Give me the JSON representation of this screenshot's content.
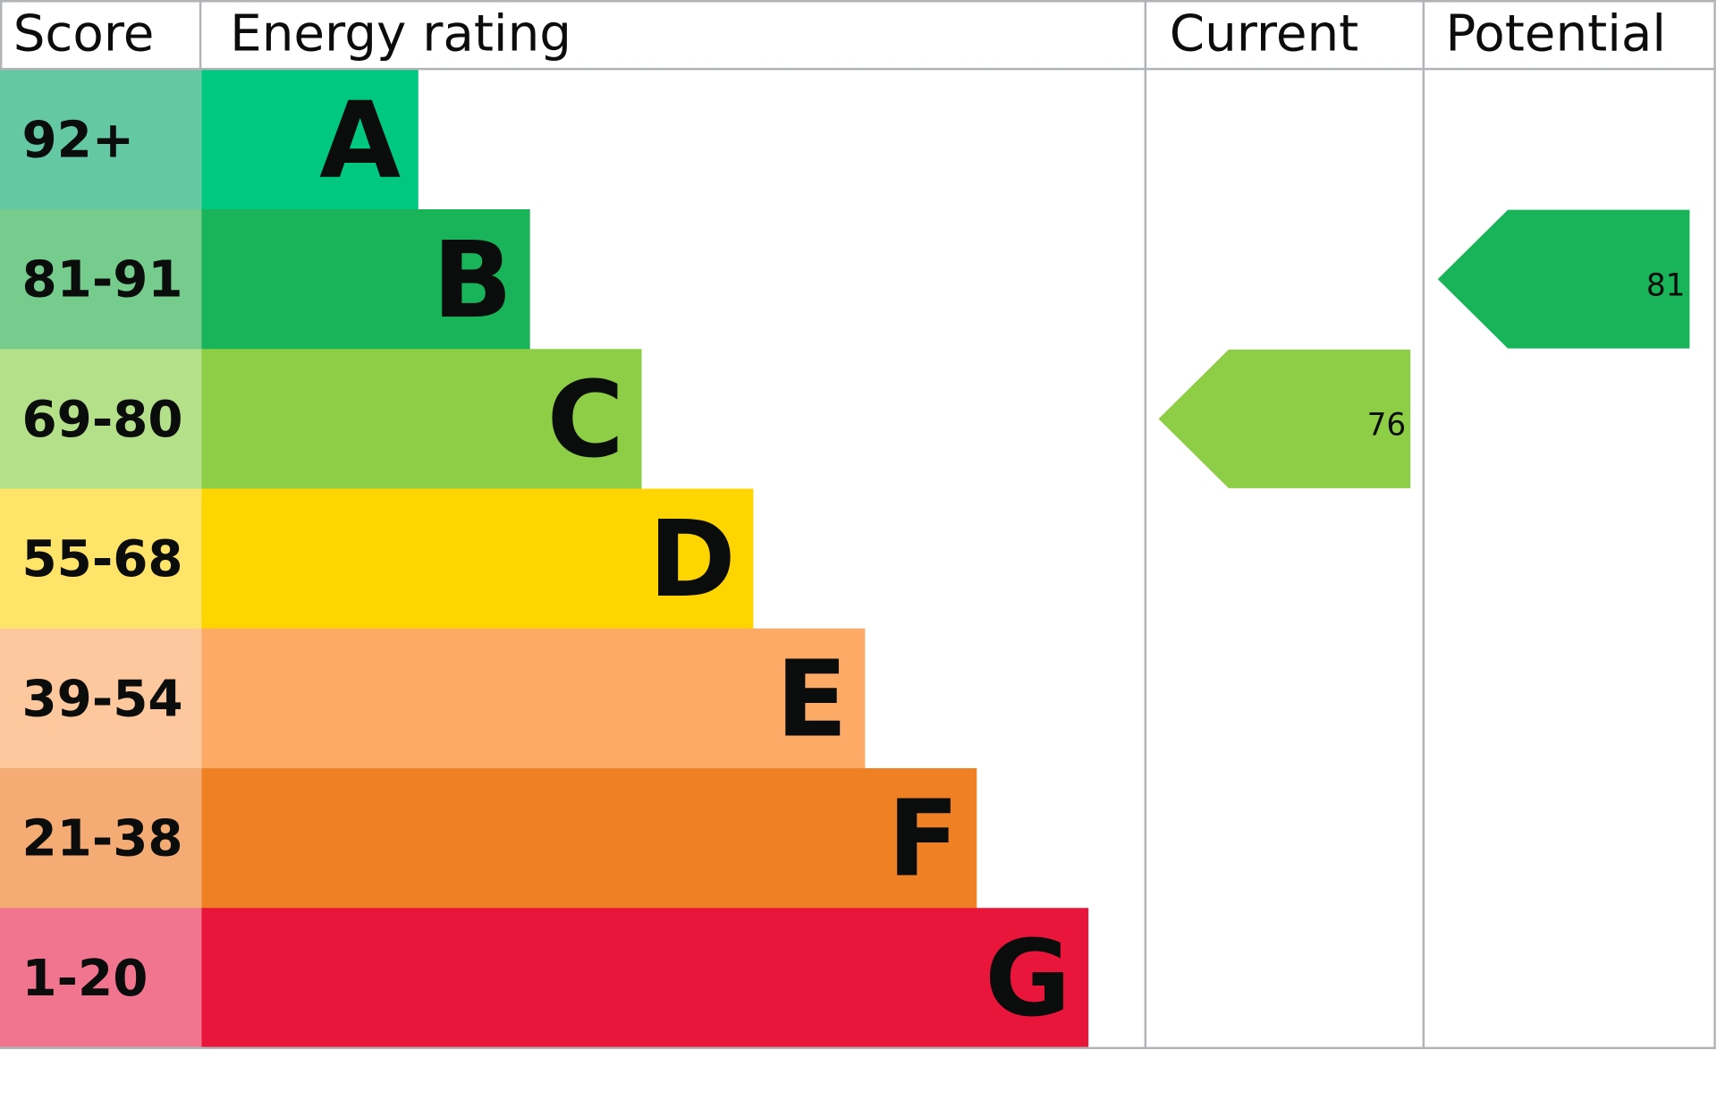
{
  "chart_data": {
    "type": "bar",
    "headers": {
      "score": "Score",
      "rating": "Energy rating",
      "current": "Current",
      "potential": "Potential"
    },
    "bands": [
      {
        "letter": "A",
        "range": "92+",
        "bar_color": "#00c781",
        "score_color": "#64c8a5"
      },
      {
        "letter": "B",
        "range": "81-91",
        "bar_color": "#19b459",
        "score_color": "#75cc8c"
      },
      {
        "letter": "C",
        "range": "69-80",
        "bar_color": "#8dce46",
        "score_color": "#b4e08a"
      },
      {
        "letter": "D",
        "range": "55-68",
        "bar_color": "#ffd500",
        "score_color": "#ffe46a"
      },
      {
        "letter": "E",
        "range": "39-54",
        "bar_color": "#fcaa65",
        "score_color": "#fec89e"
      },
      {
        "letter": "F",
        "range": "21-38",
        "bar_color": "#ef8023",
        "score_color": "#f4ab74"
      },
      {
        "letter": "G",
        "range": "1-20",
        "bar_color": "#e9153b",
        "score_color": "#f27590"
      }
    ],
    "current": {
      "value": "76",
      "band": "C",
      "color": "#8dce46"
    },
    "potential": {
      "value": "81",
      "band": "B",
      "color": "#19b459"
    }
  }
}
